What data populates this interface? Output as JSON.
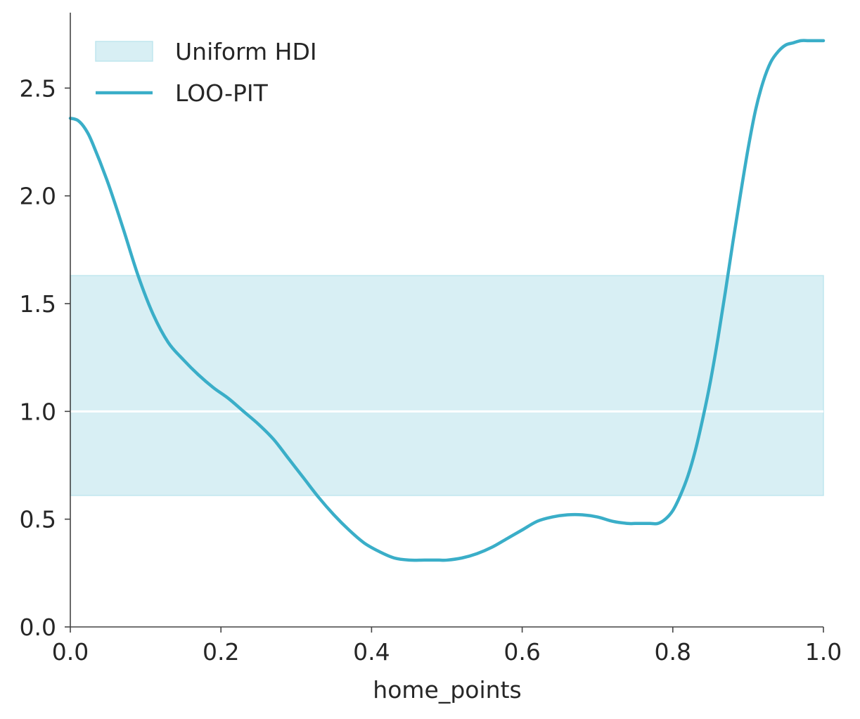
{
  "chart_data": {
    "type": "line",
    "title": "",
    "xlabel": "home_points",
    "ylabel": "",
    "xlim": [
      0.0,
      1.0
    ],
    "ylim": [
      0.0,
      2.85
    ],
    "xticks": [
      "0.0",
      "0.2",
      "0.4",
      "0.6",
      "0.8",
      "1.0"
    ],
    "yticks": [
      "0.0",
      "0.5",
      "1.0",
      "1.5",
      "2.0",
      "2.5"
    ],
    "grid": false,
    "legend_position": "top-left",
    "legend": [
      "Uniform HDI",
      "LOO-PIT"
    ],
    "colors": {
      "line": "#3aaec8",
      "band": "#d8eff4",
      "band_edge": "#bfe6ee",
      "reference": "#ffffff",
      "axis": "#444444"
    },
    "hdi_band": {
      "name": "Uniform HDI",
      "lower": 0.61,
      "upper": 1.63,
      "reference": 1.0
    },
    "series": [
      {
        "name": "LOO-PIT",
        "x": [
          0.0,
          0.01,
          0.02,
          0.03,
          0.05,
          0.07,
          0.09,
          0.11,
          0.13,
          0.15,
          0.17,
          0.19,
          0.21,
          0.23,
          0.25,
          0.27,
          0.29,
          0.31,
          0.33,
          0.35,
          0.37,
          0.39,
          0.41,
          0.43,
          0.45,
          0.47,
          0.49,
          0.5,
          0.52,
          0.54,
          0.56,
          0.58,
          0.6,
          0.62,
          0.64,
          0.66,
          0.68,
          0.7,
          0.72,
          0.74,
          0.75,
          0.76,
          0.77,
          0.78,
          0.79,
          0.8,
          0.81,
          0.82,
          0.83,
          0.84,
          0.85,
          0.86,
          0.87,
          0.88,
          0.89,
          0.9,
          0.91,
          0.92,
          0.93,
          0.94,
          0.95,
          0.96,
          0.97,
          0.98,
          0.99,
          1.0
        ],
        "y": [
          2.36,
          2.35,
          2.31,
          2.24,
          2.06,
          1.85,
          1.63,
          1.45,
          1.32,
          1.24,
          1.17,
          1.11,
          1.06,
          1.0,
          0.94,
          0.87,
          0.78,
          0.69,
          0.6,
          0.52,
          0.45,
          0.39,
          0.35,
          0.32,
          0.31,
          0.31,
          0.31,
          0.31,
          0.32,
          0.34,
          0.37,
          0.41,
          0.45,
          0.49,
          0.51,
          0.52,
          0.52,
          0.51,
          0.49,
          0.48,
          0.48,
          0.48,
          0.48,
          0.48,
          0.5,
          0.54,
          0.61,
          0.7,
          0.82,
          0.97,
          1.14,
          1.34,
          1.56,
          1.79,
          2.01,
          2.22,
          2.4,
          2.53,
          2.62,
          2.67,
          2.7,
          2.71,
          2.72,
          2.72,
          2.72,
          2.72
        ]
      }
    ]
  }
}
